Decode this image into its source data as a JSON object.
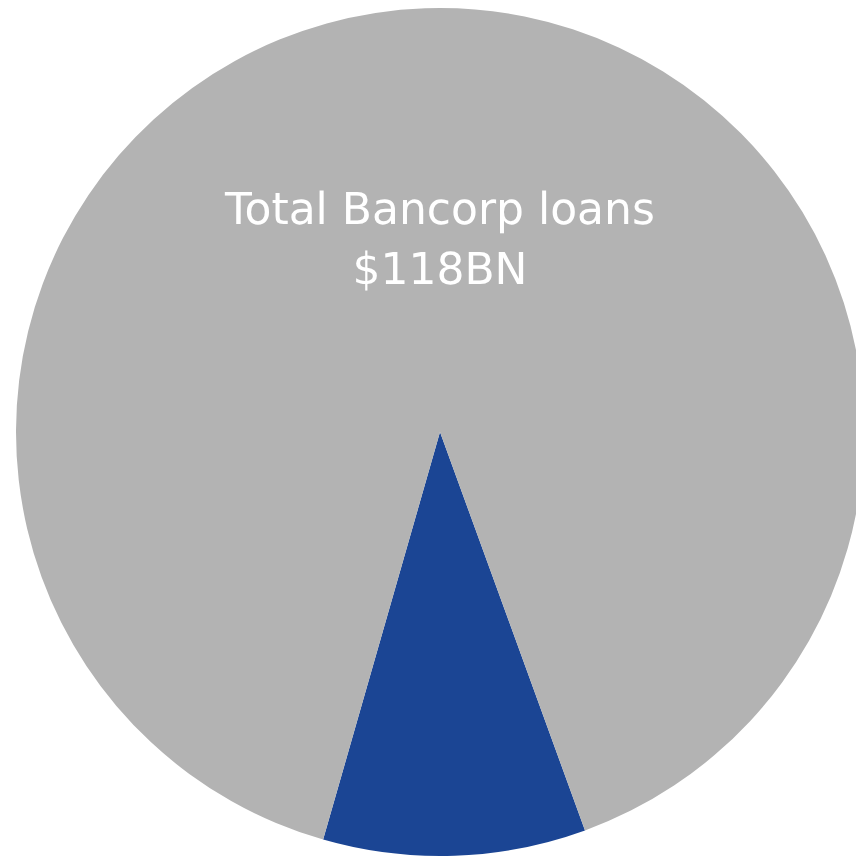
{
  "chart_data": {
    "type": "pie",
    "title": "Total Bancorp loans",
    "subtitle": "$118BN",
    "categories": [
      null,
      null
    ],
    "values": [
      10,
      90
    ],
    "colors": [
      "#1b4594",
      "#b3b3b3"
    ]
  }
}
